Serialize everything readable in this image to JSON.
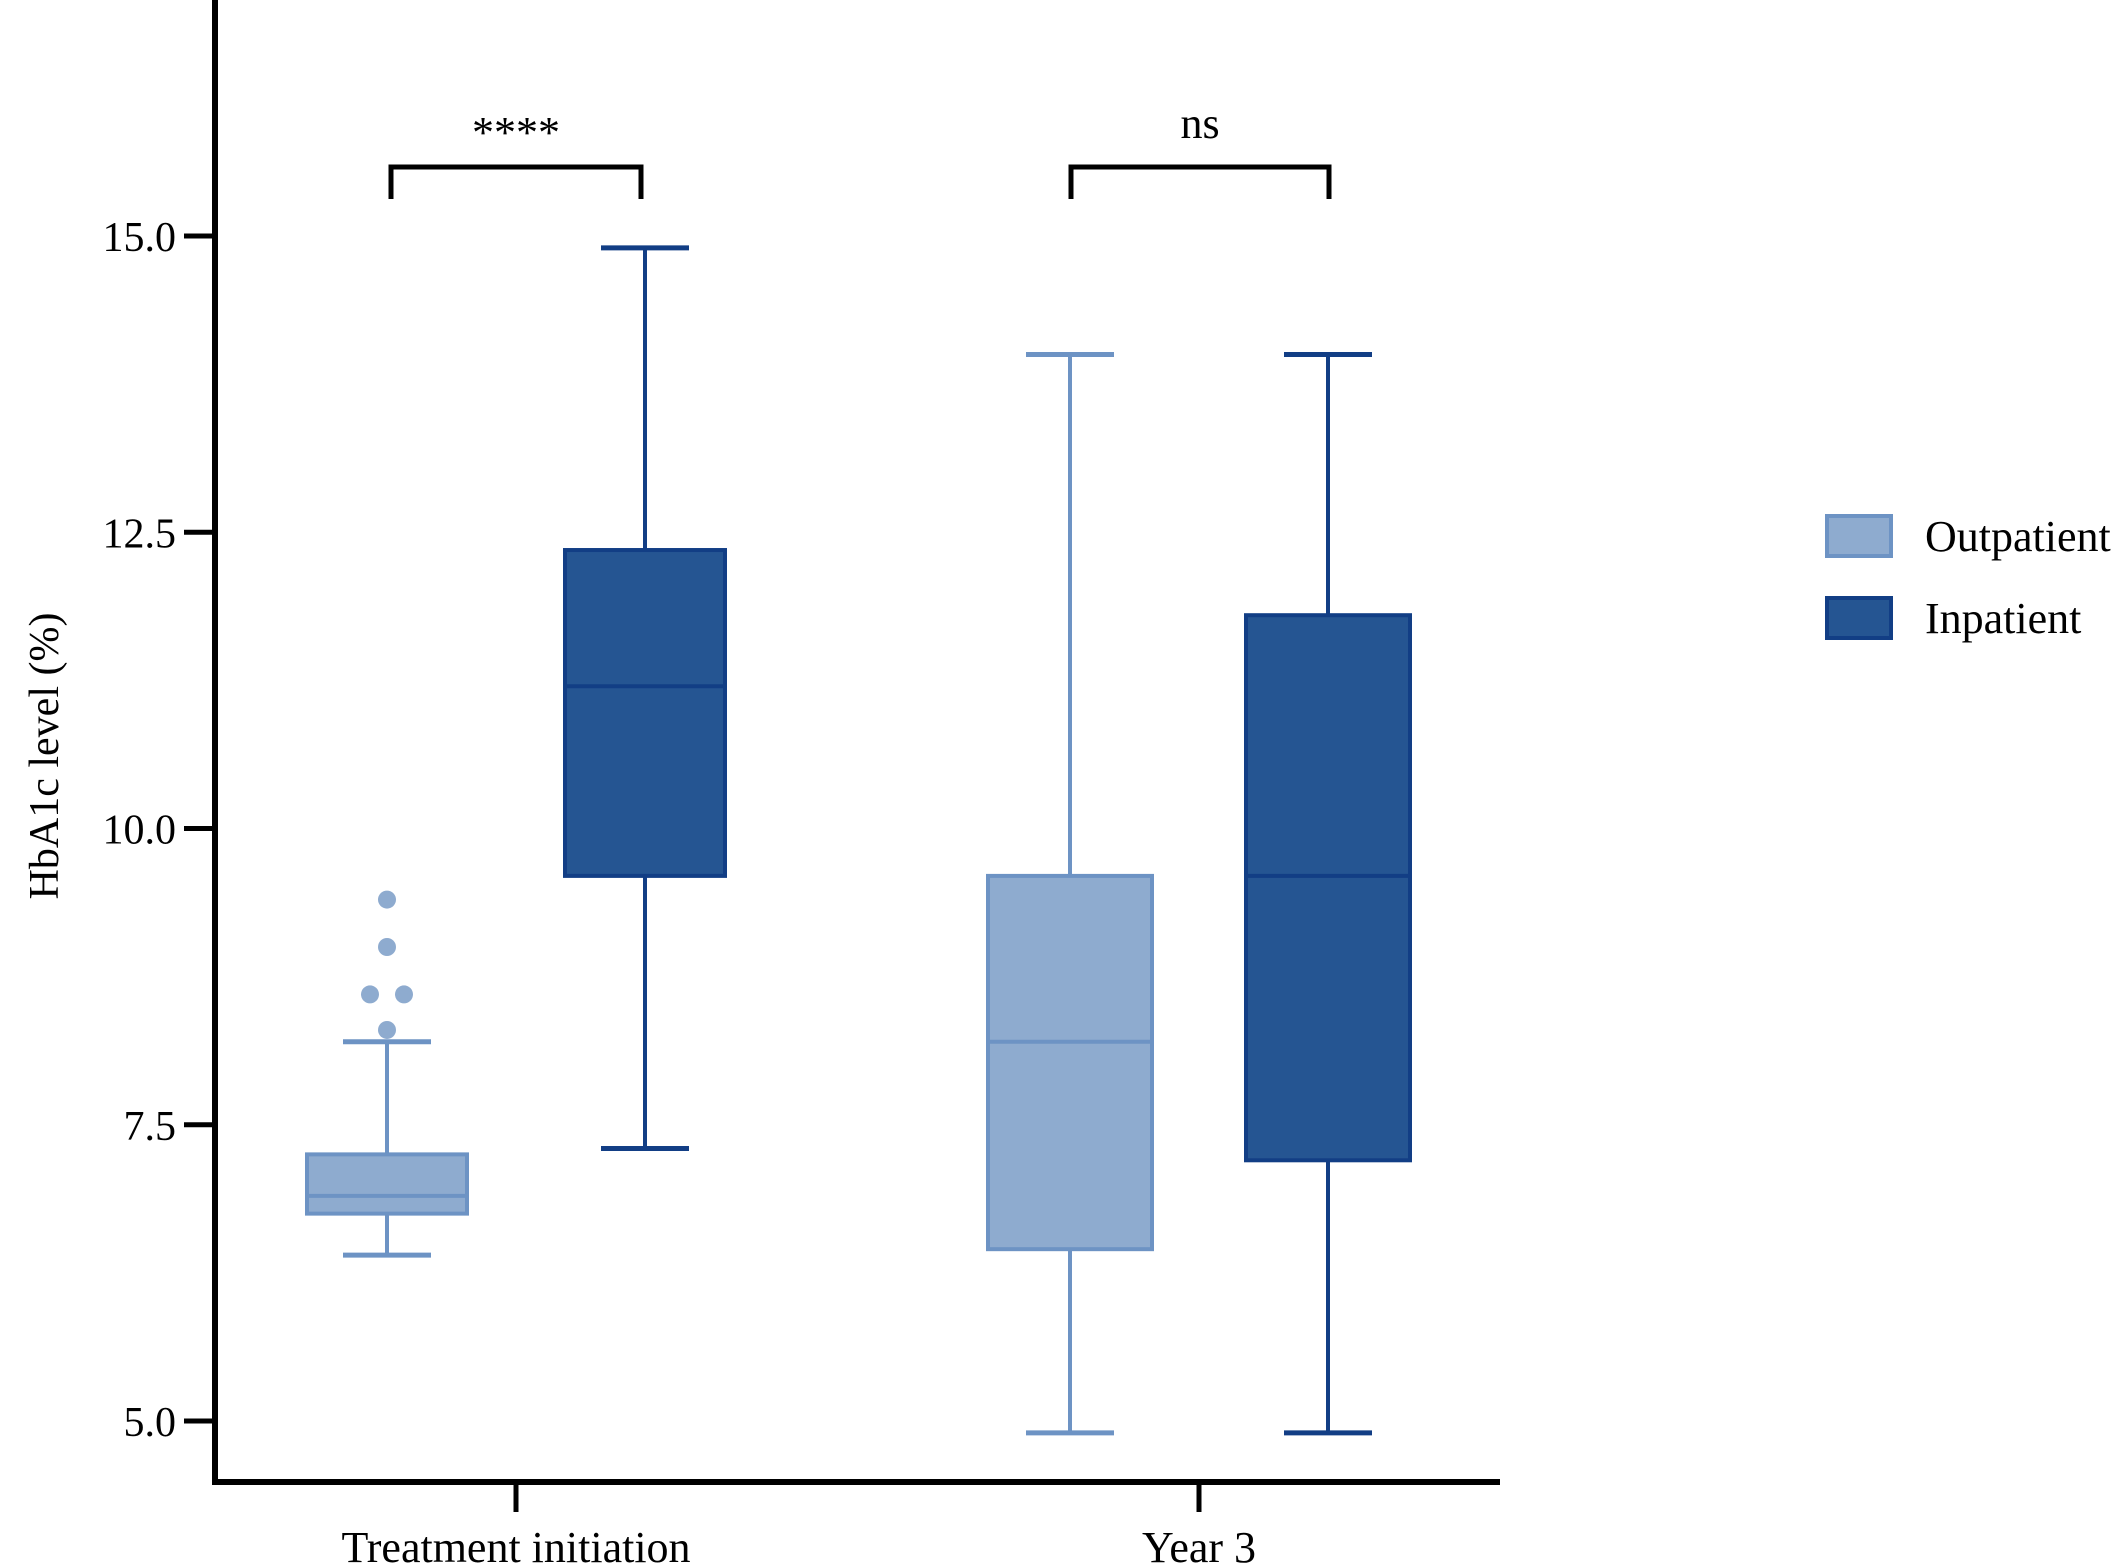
{
  "chart_data": {
    "type": "box",
    "title": "",
    "xlabel": "",
    "ylabel": "HbA1c level (%)",
    "ylim": [
      4.7,
      16.9
    ],
    "yticks": [
      5.0,
      7.5,
      10.0,
      12.5,
      15.0
    ],
    "ytick_labels": [
      "5.0",
      "7.5",
      "10.0",
      "12.5",
      "15.0"
    ],
    "categories": [
      "Treatment initiation",
      "Year 3"
    ],
    "series": [
      {
        "name": "Outpatient",
        "color": "#8eabcf",
        "stroke": "#6d93c4",
        "boxes": [
          {
            "category": "Treatment initiation",
            "whisker_low": 6.4,
            "q1": 6.75,
            "median": 6.9,
            "q3": 7.25,
            "whisker_high": 8.2,
            "outliers": [
              8.3,
              8.6,
              8.6,
              9.0,
              9.4
            ]
          },
          {
            "category": "Year 3",
            "whisker_low": 4.9,
            "q1": 6.45,
            "median": 8.2,
            "q3": 9.6,
            "whisker_high": 14.0,
            "outliers": []
          }
        ]
      },
      {
        "name": "Inpatient",
        "color": "#255592",
        "stroke": "#123e85",
        "boxes": [
          {
            "category": "Treatment initiation",
            "whisker_low": 7.3,
            "q1": 9.6,
            "median": 11.2,
            "q3": 12.35,
            "whisker_high": 14.9,
            "outliers": []
          },
          {
            "category": "Year 3",
            "whisker_low": 4.9,
            "q1": 7.2,
            "median": 9.6,
            "q3": 11.8,
            "whisker_high": 14.0,
            "outliers": []
          }
        ]
      }
    ],
    "significance": [
      {
        "category": "Treatment initiation",
        "label": "****"
      },
      {
        "category": "Year 3",
        "label": "ns"
      }
    ],
    "legend": {
      "position": "right",
      "entries": [
        "Outpatient",
        "Inpatient"
      ]
    },
    "grid": false
  }
}
